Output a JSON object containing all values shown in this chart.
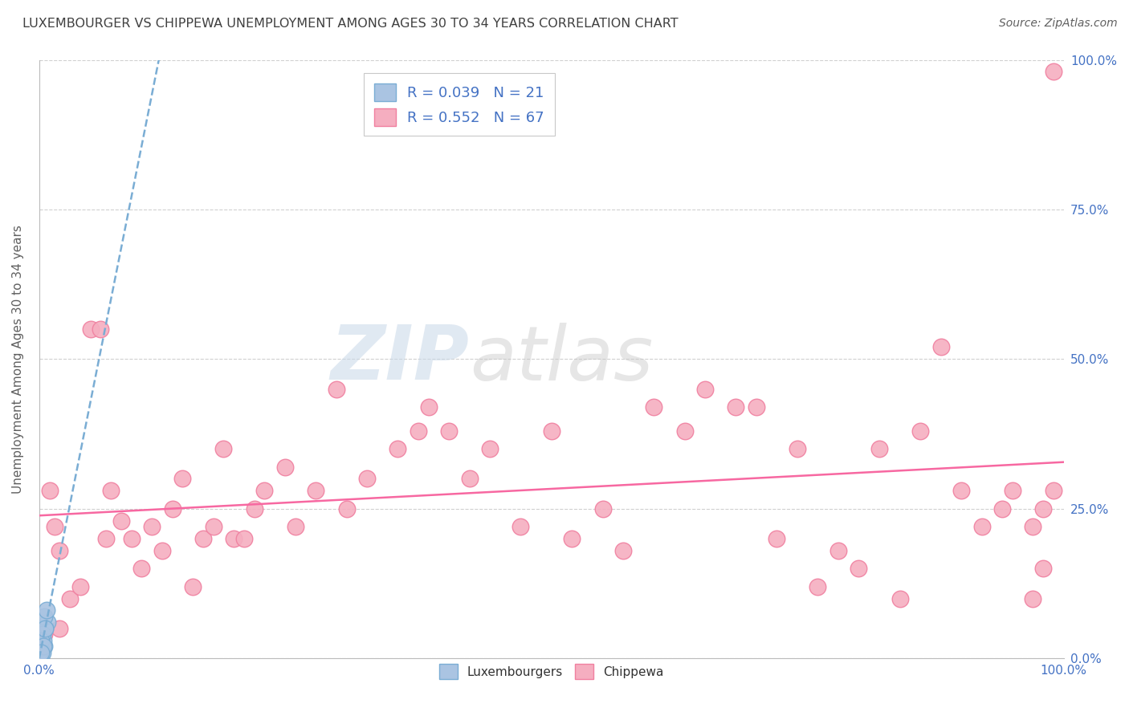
{
  "title": "LUXEMBOURGER VS CHIPPEWA UNEMPLOYMENT AMONG AGES 30 TO 34 YEARS CORRELATION CHART",
  "source": "Source: ZipAtlas.com",
  "ylabel": "Unemployment Among Ages 30 to 34 years",
  "ylabel_ticks": [
    "0.0%",
    "25.0%",
    "50.0%",
    "75.0%",
    "100.0%"
  ],
  "ytick_positions": [
    0,
    0.25,
    0.5,
    0.75,
    1.0
  ],
  "xlim": [
    0,
    1.0
  ],
  "ylim": [
    0,
    1.0
  ],
  "legend_lux": "R = 0.039   N = 21",
  "legend_chip": "R = 0.552   N = 67",
  "lux_color": "#aac4e2",
  "chip_color": "#f5aec0",
  "lux_edge_color": "#7aadd4",
  "chip_edge_color": "#f080a0",
  "lux_line_color": "#7aadd4",
  "chip_line_color": "#f768a1",
  "background_color": "#ffffff",
  "grid_color": "#d0d0d0",
  "title_color": "#404040",
  "source_color": "#606060",
  "axis_label_color": "#606060",
  "tick_color": "#4472c4",
  "luxembourger_x": [
    0.002,
    0.005,
    0.003,
    0.001,
    0.0,
    0.008,
    0.004,
    0.006,
    0.002,
    0.001,
    0.0,
    0.003,
    0.001,
    0.005,
    0.002,
    0.007,
    0.003,
    0.0,
    0.004,
    0.006,
    0.002
  ],
  "luxembourger_y": [
    0.0,
    0.02,
    0.04,
    0.0,
    0.01,
    0.06,
    0.03,
    0.05,
    0.01,
    0.0,
    0.02,
    0.04,
    0.0,
    0.07,
    0.03,
    0.08,
    0.01,
    0.0,
    0.02,
    0.05,
    0.01
  ],
  "chippewa_x": [
    0.005,
    0.01,
    0.015,
    0.02,
    0.02,
    0.03,
    0.04,
    0.05,
    0.06,
    0.065,
    0.07,
    0.08,
    0.09,
    0.1,
    0.11,
    0.12,
    0.13,
    0.14,
    0.15,
    0.16,
    0.17,
    0.18,
    0.19,
    0.2,
    0.21,
    0.22,
    0.24,
    0.25,
    0.27,
    0.29,
    0.3,
    0.32,
    0.35,
    0.37,
    0.38,
    0.4,
    0.42,
    0.44,
    0.47,
    0.5,
    0.52,
    0.55,
    0.57,
    0.6,
    0.63,
    0.65,
    0.68,
    0.7,
    0.72,
    0.74,
    0.76,
    0.78,
    0.8,
    0.82,
    0.84,
    0.86,
    0.88,
    0.9,
    0.92,
    0.94,
    0.95,
    0.97,
    0.97,
    0.98,
    0.98,
    0.99,
    0.99
  ],
  "chippewa_y": [
    0.04,
    0.28,
    0.22,
    0.05,
    0.18,
    0.1,
    0.12,
    0.55,
    0.55,
    0.2,
    0.28,
    0.23,
    0.2,
    0.15,
    0.22,
    0.18,
    0.25,
    0.3,
    0.12,
    0.2,
    0.22,
    0.35,
    0.2,
    0.2,
    0.25,
    0.28,
    0.32,
    0.22,
    0.28,
    0.45,
    0.25,
    0.3,
    0.35,
    0.38,
    0.42,
    0.38,
    0.3,
    0.35,
    0.22,
    0.38,
    0.2,
    0.25,
    0.18,
    0.42,
    0.38,
    0.45,
    0.42,
    0.42,
    0.2,
    0.35,
    0.12,
    0.18,
    0.15,
    0.35,
    0.1,
    0.38,
    0.52,
    0.28,
    0.22,
    0.25,
    0.28,
    0.1,
    0.22,
    0.25,
    0.15,
    0.28,
    0.98
  ]
}
